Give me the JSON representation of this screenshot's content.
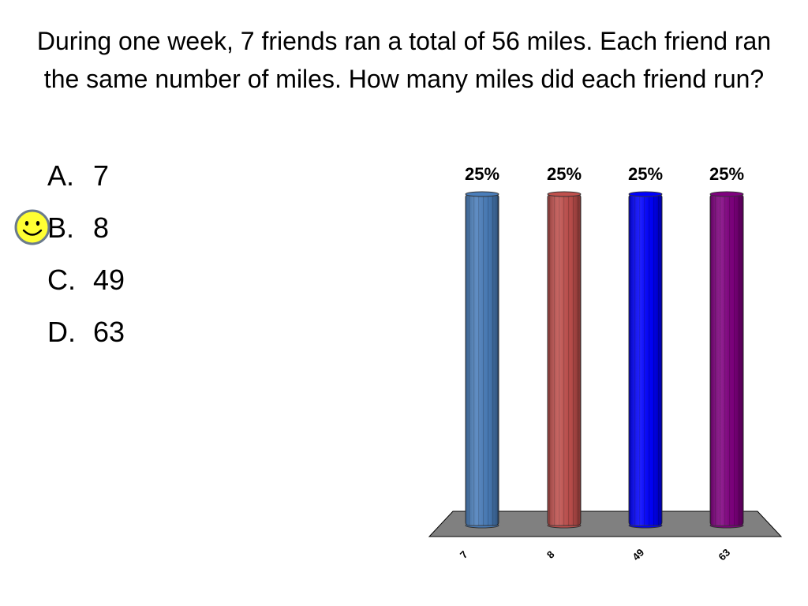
{
  "question": "During one week, 7 friends ran a total of 56 miles.  Each friend ran the same number of miles.  How many miles did each friend run?",
  "answers": [
    {
      "letter": "A.",
      "text": "7"
    },
    {
      "letter": "B.",
      "text": "8"
    },
    {
      "letter": "C.",
      "text": "49"
    },
    {
      "letter": "D.",
      "text": "63"
    }
  ],
  "correct_marker": {
    "icon": "smiley-icon",
    "answer": "B."
  },
  "chart_data": {
    "type": "bar",
    "categories": [
      "7",
      "8",
      "49",
      "63"
    ],
    "values": [
      25,
      25,
      25,
      25
    ],
    "value_labels": [
      "25%",
      "25%",
      "25%",
      "25%"
    ],
    "unit": "%",
    "ylim": [
      0,
      25
    ],
    "colors": [
      "#4a7ebb",
      "#c0504d",
      "#0000ff",
      "#800080"
    ],
    "floor_color": "#808080",
    "grid": false,
    "legend": "none"
  }
}
